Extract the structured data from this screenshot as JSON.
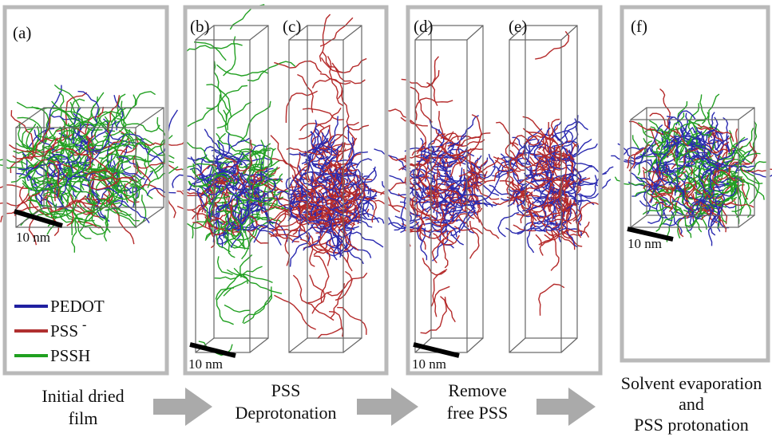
{
  "panels": [
    {
      "label": "(a)"
    },
    {
      "label": "(b)"
    },
    {
      "label": "(c)"
    },
    {
      "label": "(d)"
    },
    {
      "label": "(e)"
    },
    {
      "label": "(f)"
    }
  ],
  "scale_bars": [
    "10 nm",
    "10 nm",
    "10 nm",
    "10 nm"
  ],
  "legend": [
    {
      "label": "PEDOT"
    },
    {
      "label": "PSS",
      "superscript": "-"
    },
    {
      "label": "PSSH"
    }
  ],
  "steps": [
    {
      "lines": [
        "Initial dried",
        "film"
      ]
    },
    {
      "lines": [
        "PSS",
        "Deprotonation"
      ]
    },
    {
      "lines": [
        "Remove",
        "free PSS"
      ]
    },
    {
      "lines": [
        "Solvent evaporation",
        "and",
        "PSS protonation"
      ]
    }
  ]
}
